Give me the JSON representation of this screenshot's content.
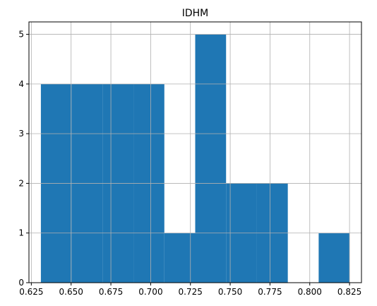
{
  "chart_data": {
    "type": "bar",
    "title": "IDHM",
    "xlabel": "",
    "ylabel": "",
    "grid": true,
    "bar_color": "#1f77b4",
    "grid_color": "#b0b0b0",
    "xlim": [
      0.6235,
      0.8325
    ],
    "ylim": [
      0,
      5.25
    ],
    "x_ticks": [
      "0.625",
      "0.650",
      "0.675",
      "0.700",
      "0.725",
      "0.750",
      "0.775",
      "0.800",
      "0.825"
    ],
    "y_ticks": [
      "0",
      "1",
      "2",
      "3",
      "4",
      "5"
    ],
    "bins": [
      {
        "start": 0.631,
        "end": 0.6504,
        "count": 4
      },
      {
        "start": 0.6504,
        "end": 0.6698,
        "count": 4
      },
      {
        "start": 0.6698,
        "end": 0.6892,
        "count": 4
      },
      {
        "start": 0.6892,
        "end": 0.7086,
        "count": 4
      },
      {
        "start": 0.7086,
        "end": 0.728,
        "count": 1
      },
      {
        "start": 0.728,
        "end": 0.7474,
        "count": 5
      },
      {
        "start": 0.7474,
        "end": 0.7668,
        "count": 2
      },
      {
        "start": 0.7668,
        "end": 0.7862,
        "count": 2
      },
      {
        "start": 0.7862,
        "end": 0.8056,
        "count": 0
      },
      {
        "start": 0.8056,
        "end": 0.825,
        "count": 1
      }
    ]
  }
}
